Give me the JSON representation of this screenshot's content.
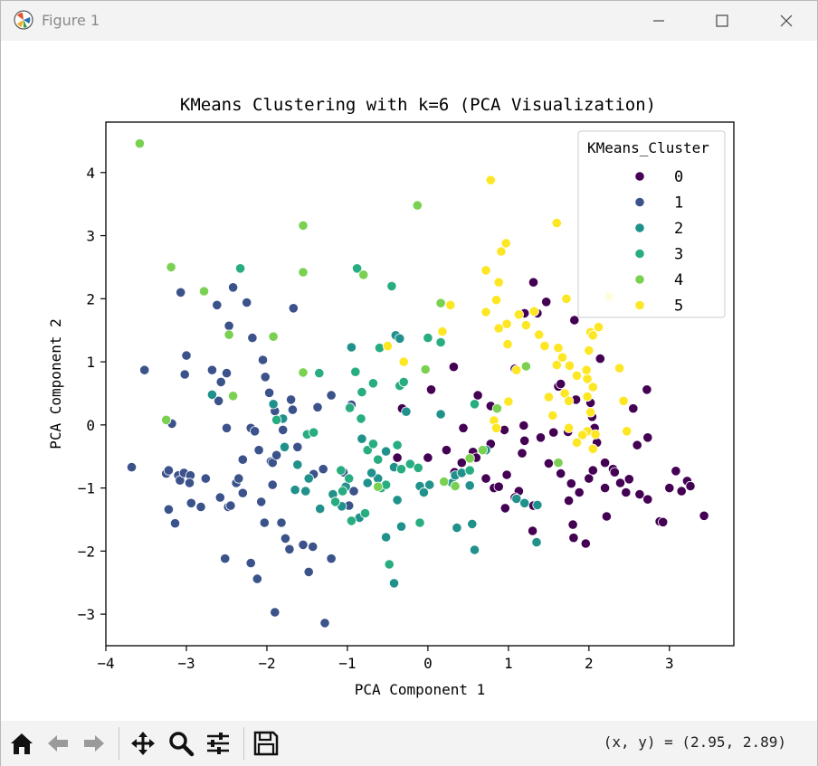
{
  "window": {
    "title": "Figure 1"
  },
  "toolbar": {
    "buttons": [
      "home-icon",
      "back-icon",
      "forward-icon",
      "pan-icon",
      "zoom-icon",
      "configure-subplots-icon",
      "save-icon"
    ],
    "coords": "(x, y) = (2.95, 2.89)"
  },
  "chart_data": {
    "type": "scatter",
    "title": "KMeans Clustering with k=6 (PCA Visualization)",
    "xlabel": "PCA Component 1",
    "ylabel": "PCA Component 2",
    "xlim": [
      -4.0,
      3.8
    ],
    "ylim": [
      -3.5,
      4.8
    ],
    "xticks": [
      -4,
      -3,
      -2,
      -1,
      0,
      1,
      2,
      3
    ],
    "yticks": [
      -3,
      -2,
      -1,
      0,
      1,
      2,
      3,
      4
    ],
    "grid": false,
    "legend_position": "top-right",
    "legend_title": "KMeans_Cluster",
    "series": [
      {
        "name": "0",
        "color": "#440154",
        "points": [
          [
            1.31,
            2.26
          ],
          [
            1.47,
            1.95
          ],
          [
            1.82,
            1.66
          ],
          [
            1.2,
            1.77
          ],
          [
            1.36,
            1.77
          ],
          [
            1.08,
            0.89
          ],
          [
            1.62,
            0.61
          ],
          [
            1.65,
            0.65
          ],
          [
            1.84,
            0.4
          ],
          [
            2.02,
            0.35
          ],
          [
            2.04,
            0.13
          ],
          [
            2.07,
            -0.05
          ],
          [
            1.74,
            -0.11
          ],
          [
            1.56,
            -0.12
          ],
          [
            1.4,
            -0.2
          ],
          [
            1.19,
            -0.01
          ],
          [
            1.2,
            -0.25
          ],
          [
            0.95,
            -0.08
          ],
          [
            0.78,
            -0.3
          ],
          [
            0.78,
            0.3
          ],
          [
            0.62,
            0.47
          ],
          [
            0.44,
            -0.05
          ],
          [
            0.56,
            -0.43
          ],
          [
            0.42,
            -0.6
          ],
          [
            0.23,
            -0.4
          ],
          [
            0.33,
            -0.75
          ],
          [
            0.6,
            -0.52
          ],
          [
            0.72,
            -0.85
          ],
          [
            0.82,
            -1.0
          ],
          [
            0.98,
            -0.79
          ],
          [
            0.96,
            -1.32
          ],
          [
            1.13,
            -1.05
          ],
          [
            1.31,
            -1.28
          ],
          [
            1.3,
            -1.68
          ],
          [
            1.17,
            -0.45
          ],
          [
            1.5,
            -0.61
          ],
          [
            1.65,
            -0.77
          ],
          [
            1.75,
            -1.2
          ],
          [
            1.8,
            -1.58
          ],
          [
            1.81,
            -1.79
          ],
          [
            1.96,
            -1.88
          ],
          [
            2.0,
            -0.85
          ],
          [
            2.05,
            -0.72
          ],
          [
            2.2,
            -0.6
          ],
          [
            2.3,
            -0.7
          ],
          [
            2.32,
            -0.75
          ],
          [
            2.39,
            -0.92
          ],
          [
            2.5,
            -0.86
          ],
          [
            2.6,
            -0.32
          ],
          [
            2.73,
            -0.2
          ],
          [
            2.46,
            -1.07
          ],
          [
            2.63,
            -1.1
          ],
          [
            2.73,
            -1.18
          ],
          [
            2.88,
            -1.53
          ],
          [
            3.0,
            -1.0
          ],
          [
            3.08,
            -0.73
          ],
          [
            3.15,
            -1.05
          ],
          [
            3.22,
            -0.89
          ],
          [
            3.26,
            -0.97
          ],
          [
            3.43,
            -1.44
          ],
          [
            2.55,
            0.26
          ],
          [
            2.72,
            0.56
          ],
          [
            2.14,
            1.05
          ],
          [
            2.1,
            -0.28
          ],
          [
            1.08,
            -1.15
          ],
          [
            0.32,
            0.92
          ],
          [
            0.04,
            0.56
          ],
          [
            -0.32,
            0.26
          ],
          [
            -0.38,
            -0.52
          ],
          [
            2.22,
            -1.45
          ],
          [
            2.92,
            -1.54
          ],
          [
            1.88,
            -1.07
          ],
          [
            2.2,
            -1.0
          ],
          [
            1.78,
            -0.93
          ],
          [
            0.0,
            -0.52
          ],
          [
            0.88,
            -0.98
          ]
        ]
      },
      {
        "name": "1",
        "color": "#3b528b",
        "points": [
          [
            -3.68,
            -0.67
          ],
          [
            -3.52,
            0.87
          ],
          [
            -3.25,
            -0.77
          ],
          [
            -3.22,
            -0.72
          ],
          [
            -3.22,
            -1.34
          ],
          [
            -3.18,
            0.02
          ],
          [
            -3.14,
            -1.56
          ],
          [
            -3.1,
            -0.8
          ],
          [
            -3.08,
            -0.88
          ],
          [
            -3.03,
            -0.76
          ],
          [
            -3.07,
            2.1
          ],
          [
            -3.02,
            0.8
          ],
          [
            -2.95,
            -0.8
          ],
          [
            -2.96,
            -0.92
          ],
          [
            -2.94,
            -1.24
          ],
          [
            -2.82,
            -1.3
          ],
          [
            -2.76,
            -0.85
          ],
          [
            -2.68,
            0.87
          ],
          [
            -2.62,
            1.9
          ],
          [
            -2.58,
            -1.15
          ],
          [
            -2.5,
            -0.05
          ],
          [
            -2.48,
            -1.3
          ],
          [
            -2.47,
            1.57
          ],
          [
            -2.42,
            2.18
          ],
          [
            -2.38,
            -0.92
          ],
          [
            -2.35,
            -0.85
          ],
          [
            -2.3,
            -1.08
          ],
          [
            -2.25,
            1.94
          ],
          [
            -2.2,
            -0.05
          ],
          [
            -2.18,
            1.38
          ],
          [
            -2.15,
            -0.1
          ],
          [
            -2.1,
            -0.4
          ],
          [
            -2.05,
            1.03
          ],
          [
            -2.07,
            -1.22
          ],
          [
            -2.03,
            -1.55
          ],
          [
            -1.97,
            0.51
          ],
          [
            -1.95,
            -0.58
          ],
          [
            -1.93,
            -0.6
          ],
          [
            -1.9,
            0.22
          ],
          [
            -1.88,
            -0.48
          ],
          [
            -1.8,
            -0.08
          ],
          [
            -1.77,
            -1.8
          ],
          [
            -1.7,
            0.4
          ],
          [
            -1.68,
            0.24
          ],
          [
            -1.67,
            1.85
          ],
          [
            -1.62,
            -0.35
          ],
          [
            -1.55,
            -1.9
          ],
          [
            -1.48,
            -2.33
          ],
          [
            -1.42,
            -0.78
          ],
          [
            -1.37,
            0.28
          ],
          [
            -1.3,
            -0.7
          ],
          [
            -1.28,
            -3.14
          ],
          [
            -1.2,
            -2.12
          ],
          [
            -1.05,
            -0.75
          ],
          [
            -0.98,
            -1.28
          ],
          [
            -0.92,
            -1.05
          ],
          [
            -2.45,
            -1.28
          ],
          [
            -2.52,
            -2.12
          ],
          [
            -2.12,
            -2.44
          ],
          [
            -1.93,
            -0.95
          ],
          [
            -1.9,
            -2.97
          ],
          [
            -1.72,
            -1.97
          ],
          [
            -2.2,
            -2.19
          ],
          [
            -2.02,
            0.76
          ],
          [
            -2.57,
            0.68
          ],
          [
            -2.5,
            0.82
          ],
          [
            -1.82,
            -1.55
          ],
          [
            -0.95,
            0.32
          ],
          [
            -1.2,
            0.47
          ],
          [
            -1.43,
            -1.93
          ],
          [
            -2.6,
            0.38
          ],
          [
            -2.3,
            -0.55
          ],
          [
            -3.0,
            1.1
          ]
        ]
      },
      {
        "name": "2",
        "color": "#21918c",
        "points": [
          [
            -2.68,
            0.48
          ],
          [
            -1.92,
            0.33
          ],
          [
            -1.78,
            -0.35
          ],
          [
            -1.65,
            -1.03
          ],
          [
            -1.52,
            -1.05
          ],
          [
            -1.34,
            -1.33
          ],
          [
            -1.18,
            -1.1
          ],
          [
            -1.07,
            -1.29
          ],
          [
            -1.02,
            -0.98
          ],
          [
            -0.95,
            1.23
          ],
          [
            -0.82,
            -0.22
          ],
          [
            -0.75,
            -0.92
          ],
          [
            -0.62,
            -0.85
          ],
          [
            -0.52,
            -0.42
          ],
          [
            -0.52,
            -1.78
          ],
          [
            -0.42,
            -0.67
          ],
          [
            -0.38,
            -1.19
          ],
          [
            -0.33,
            -1.61
          ],
          [
            -0.4,
            1.42
          ],
          [
            -0.35,
            1.37
          ],
          [
            -0.27,
            0.21
          ],
          [
            -0.1,
            -0.97
          ],
          [
            0.02,
            -0.95
          ],
          [
            0.16,
            0.17
          ],
          [
            0.3,
            -0.92
          ],
          [
            0.34,
            -0.8
          ],
          [
            0.42,
            -0.76
          ],
          [
            0.52,
            -0.96
          ],
          [
            0.55,
            -1.57
          ],
          [
            0.58,
            -1.98
          ],
          [
            0.72,
            -0.4
          ],
          [
            1.1,
            -1.17
          ],
          [
            1.2,
            -1.24
          ],
          [
            1.35,
            -1.86
          ],
          [
            -0.42,
            -2.51
          ],
          [
            -1.48,
            -0.85
          ],
          [
            -0.85,
            -1.47
          ],
          [
            -0.05,
            -1.07
          ],
          [
            -1.62,
            -0.63
          ],
          [
            -1.8,
            0.1
          ],
          [
            0.36,
            -1.63
          ],
          [
            1.36,
            -1.27
          ],
          [
            -0.7,
            -0.76
          ]
        ]
      },
      {
        "name": "3",
        "color": "#27ad81",
        "points": [
          [
            -2.33,
            2.48
          ],
          [
            -1.88,
            0.08
          ],
          [
            -1.5,
            -0.15
          ],
          [
            -1.35,
            0.82
          ],
          [
            -1.15,
            -1.22
          ],
          [
            -1.08,
            -0.72
          ],
          [
            -0.98,
            -0.85
          ],
          [
            -0.95,
            -1.52
          ],
          [
            -0.9,
            0.84
          ],
          [
            -0.88,
            2.48
          ],
          [
            -0.83,
            0.1
          ],
          [
            -0.78,
            -1.4
          ],
          [
            -0.75,
            -0.4
          ],
          [
            -0.68,
            0.66
          ],
          [
            -0.62,
            -0.55
          ],
          [
            -0.58,
            -1.0
          ],
          [
            -0.52,
            -0.95
          ],
          [
            -0.48,
            -2.21
          ],
          [
            -0.45,
            2.2
          ],
          [
            -0.38,
            -0.32
          ],
          [
            -0.35,
            0.62
          ],
          [
            -0.33,
            -0.7
          ],
          [
            -0.3,
            0.68
          ],
          [
            -0.22,
            -0.62
          ],
          [
            -0.12,
            -0.68
          ],
          [
            -0.1,
            -1.55
          ],
          [
            0.0,
            1.38
          ],
          [
            0.16,
            1.31
          ],
          [
            0.52,
            -0.72
          ],
          [
            0.58,
            0.33
          ],
          [
            -0.97,
            0.27
          ],
          [
            -1.06,
            -1.05
          ],
          [
            -0.68,
            -0.3
          ],
          [
            -0.82,
            0.52
          ],
          [
            -1.42,
            -0.12
          ],
          [
            -0.6,
            1.22
          ]
        ]
      },
      {
        "name": "4",
        "color": "#7ad151",
        "points": [
          [
            -3.58,
            4.46
          ],
          [
            -3.25,
            0.08
          ],
          [
            -3.19,
            2.5
          ],
          [
            -2.78,
            2.12
          ],
          [
            -2.47,
            1.43
          ],
          [
            -2.42,
            0.46
          ],
          [
            -1.92,
            1.4
          ],
          [
            -1.55,
            3.16
          ],
          [
            -1.55,
            2.42
          ],
          [
            -1.55,
            0.83
          ],
          [
            -0.8,
            2.38
          ],
          [
            -0.13,
            3.48
          ],
          [
            -0.03,
            0.88
          ],
          [
            0.16,
            1.93
          ],
          [
            0.2,
            -0.9
          ],
          [
            0.52,
            -0.53
          ],
          [
            0.86,
            0.26
          ],
          [
            0.68,
            -0.4
          ],
          [
            1.22,
            0.93
          ],
          [
            1.62,
            -0.6
          ],
          [
            -0.62,
            -0.98
          ],
          [
            0.34,
            -0.97
          ]
        ]
      },
      {
        "name": "5",
        "color": "#fde725",
        "points": [
          [
            0.78,
            3.88
          ],
          [
            0.91,
            2.75
          ],
          [
            0.97,
            2.88
          ],
          [
            0.72,
            2.45
          ],
          [
            0.88,
            2.26
          ],
          [
            0.85,
            1.98
          ],
          [
            0.72,
            1.79
          ],
          [
            0.98,
            1.6
          ],
          [
            0.88,
            1.53
          ],
          [
            1.22,
            1.58
          ],
          [
            0.99,
            1.28
          ],
          [
            1.13,
            1.75
          ],
          [
            1.32,
            1.8
          ],
          [
            1.38,
            1.43
          ],
          [
            1.45,
            1.25
          ],
          [
            1.6,
            3.2
          ],
          [
            1.62,
            1.22
          ],
          [
            1.67,
            1.07
          ],
          [
            1.72,
            2.0
          ],
          [
            1.6,
            0.95
          ],
          [
            1.76,
            0.94
          ],
          [
            1.85,
            0.78
          ],
          [
            1.98,
            0.73
          ],
          [
            2.02,
            1.47
          ],
          [
            2.05,
            1.42
          ],
          [
            2.12,
            1.55
          ],
          [
            2.0,
            1.18
          ],
          [
            1.97,
            0.87
          ],
          [
            2.05,
            0.6
          ],
          [
            1.7,
            0.5
          ],
          [
            1.5,
            0.44
          ],
          [
            1.75,
            0.38
          ],
          [
            1.98,
            0.45
          ],
          [
            2.02,
            0.2
          ],
          [
            1.98,
            -0.1
          ],
          [
            1.92,
            -0.16
          ],
          [
            1.85,
            -0.28
          ],
          [
            2.05,
            -0.38
          ],
          [
            1.75,
            -0.05
          ],
          [
            1.55,
            0.15
          ],
          [
            2.08,
            -0.15
          ],
          [
            2.43,
            0.38
          ],
          [
            2.38,
            0.9
          ],
          [
            2.47,
            -0.1
          ],
          [
            1.0,
            0.37
          ],
          [
            1.1,
            0.87
          ],
          [
            0.82,
            0.07
          ],
          [
            0.85,
            -0.05
          ],
          [
            0.28,
            1.9
          ],
          [
            0.18,
            1.48
          ],
          [
            -0.5,
            1.25
          ],
          [
            -0.3,
            1.0
          ],
          [
            2.25,
            2.03
          ]
        ]
      }
    ]
  }
}
